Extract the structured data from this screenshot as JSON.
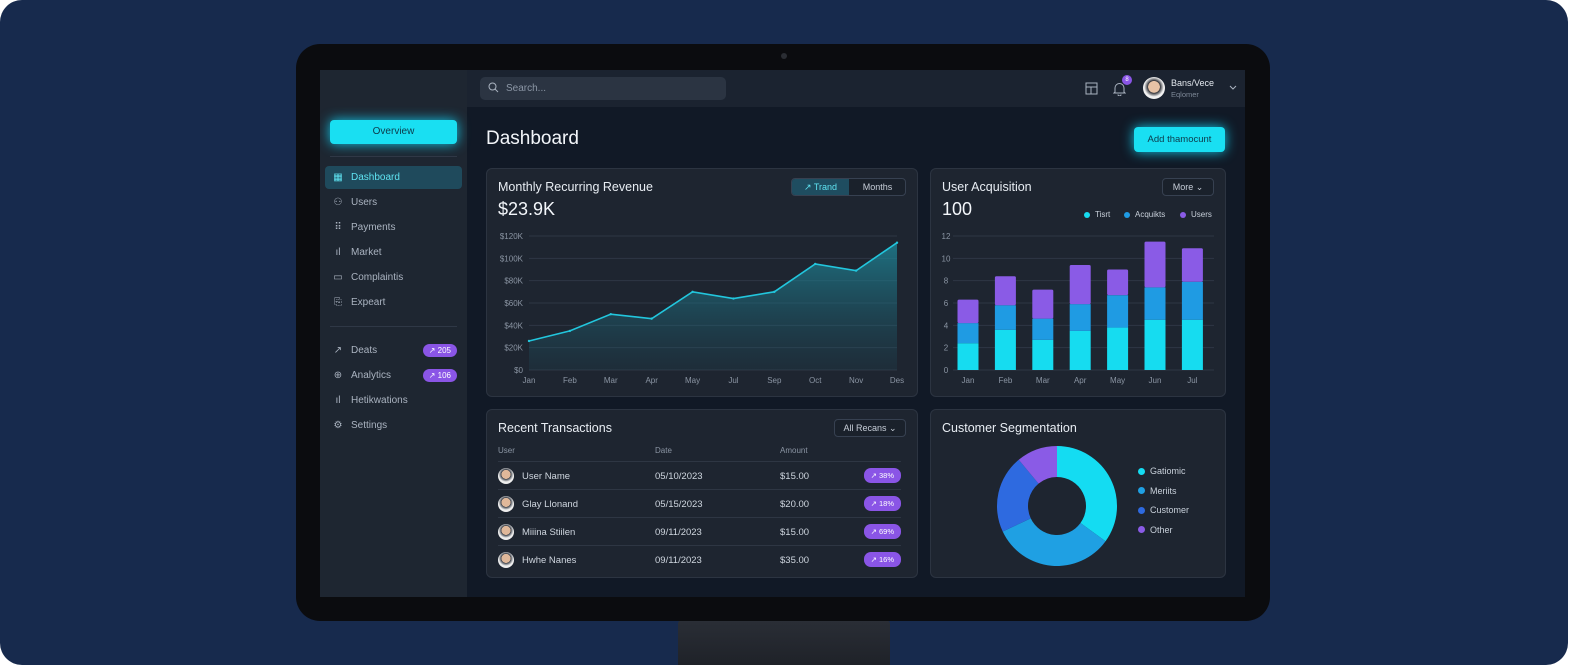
{
  "topbar": {
    "search_placeholder": "Search...",
    "notification_count": "8",
    "user_name": "Bans/Vece",
    "user_role": "Eqlomer"
  },
  "sidebar": {
    "overview_label": "Overview",
    "items": [
      {
        "label": "Dashboard",
        "icon": "grid-icon",
        "active": true
      },
      {
        "label": "Users",
        "icon": "user-icon"
      },
      {
        "label": "Payments",
        "icon": "apps-icon"
      },
      {
        "label": "Market",
        "icon": "bar-chart-icon"
      },
      {
        "label": "Complaintis",
        "icon": "window-icon"
      },
      {
        "label": "Expeart",
        "icon": "export-icon"
      }
    ],
    "secondary": [
      {
        "label": "Deats",
        "icon": "trend-icon",
        "badge": "↗ 205"
      },
      {
        "label": "Analytics",
        "icon": "globe-icon",
        "badge": "↗ 106"
      },
      {
        "label": "Hetikwations",
        "icon": "bars-icon"
      },
      {
        "label": "Settings",
        "icon": "gear-icon"
      }
    ]
  },
  "main": {
    "title": "Dashboard",
    "add_button": "Add thamocunt"
  },
  "revenue": {
    "title": "Monthly Recurring Revenue",
    "value": "$23.9K",
    "toggle": [
      "Trand",
      "Months"
    ],
    "active_toggle": "Trand"
  },
  "acquisition": {
    "title": "User Acquisition",
    "value": "100",
    "more_label": "More"
  },
  "transactions": {
    "title": "Recent Transactions",
    "filter": "All Recans",
    "columns": [
      "User",
      "Date",
      "Amount"
    ],
    "rows": [
      {
        "user": "User Name",
        "date": "05/10/2023",
        "amount": "$15.00",
        "badge": "↗ 38%"
      },
      {
        "user": "Glay Llonand",
        "date": "05/15/2023",
        "amount": "$20.00",
        "badge": "↗ 18%"
      },
      {
        "user": "Miiina Stiilen",
        "date": "09/11/2023",
        "amount": "$15.00",
        "badge": "↗ 69%"
      },
      {
        "user": "Hwhe Nanes",
        "date": "09/11/2023",
        "amount": "$35.00",
        "badge": "↗ 16%"
      }
    ]
  },
  "segmentation": {
    "title": "Customer Segmentation"
  },
  "chart_data": [
    {
      "type": "area",
      "categories": [
        "Jan",
        "Feb",
        "Mar",
        "Apr",
        "May",
        "Jul",
        "Sep",
        "Oct",
        "Nov",
        "Des"
      ],
      "values": [
        26,
        35,
        50,
        46,
        70,
        64,
        70,
        95,
        89,
        114
      ],
      "unit": "$K",
      "yticks": [
        "$120K",
        "$100K",
        "$80K",
        "$60K",
        "$40K",
        "$20K",
        "$0"
      ],
      "ylim": [
        0,
        120
      ],
      "grid": true,
      "color": "#22c6dd"
    },
    {
      "type": "bar",
      "stacked": true,
      "categories": [
        "Jan",
        "Feb",
        "Mar",
        "Apr",
        "May",
        "Jun",
        "Jul"
      ],
      "yticks": [
        "12",
        "10",
        "8",
        "6",
        "4",
        "2",
        "0"
      ],
      "ylim": [
        0,
        12
      ],
      "grid": true,
      "legend": "top-right",
      "series": [
        {
          "name": "Tisrt",
          "color": "#16dcf0",
          "values": [
            2.4,
            3.6,
            2.7,
            3.5,
            3.8,
            4.5,
            4.5
          ]
        },
        {
          "name": "Acquikts",
          "color": "#1f9be3",
          "values": [
            1.8,
            2.2,
            1.9,
            2.4,
            2.9,
            2.9,
            3.4
          ]
        },
        {
          "name": "Users",
          "color": "#8a5be6",
          "values": [
            2.1,
            2.6,
            2.6,
            3.5,
            2.3,
            4.1,
            3.0
          ]
        }
      ]
    },
    {
      "type": "pie",
      "donut": true,
      "legend": "right",
      "labels": [
        "Gatiomic",
        "Meriits",
        "Customer",
        "Other"
      ],
      "values": [
        35,
        33,
        21,
        11
      ],
      "colors": [
        "#14dcf2",
        "#1fa0e3",
        "#2e6ae0",
        "#8a5be6"
      ]
    }
  ]
}
